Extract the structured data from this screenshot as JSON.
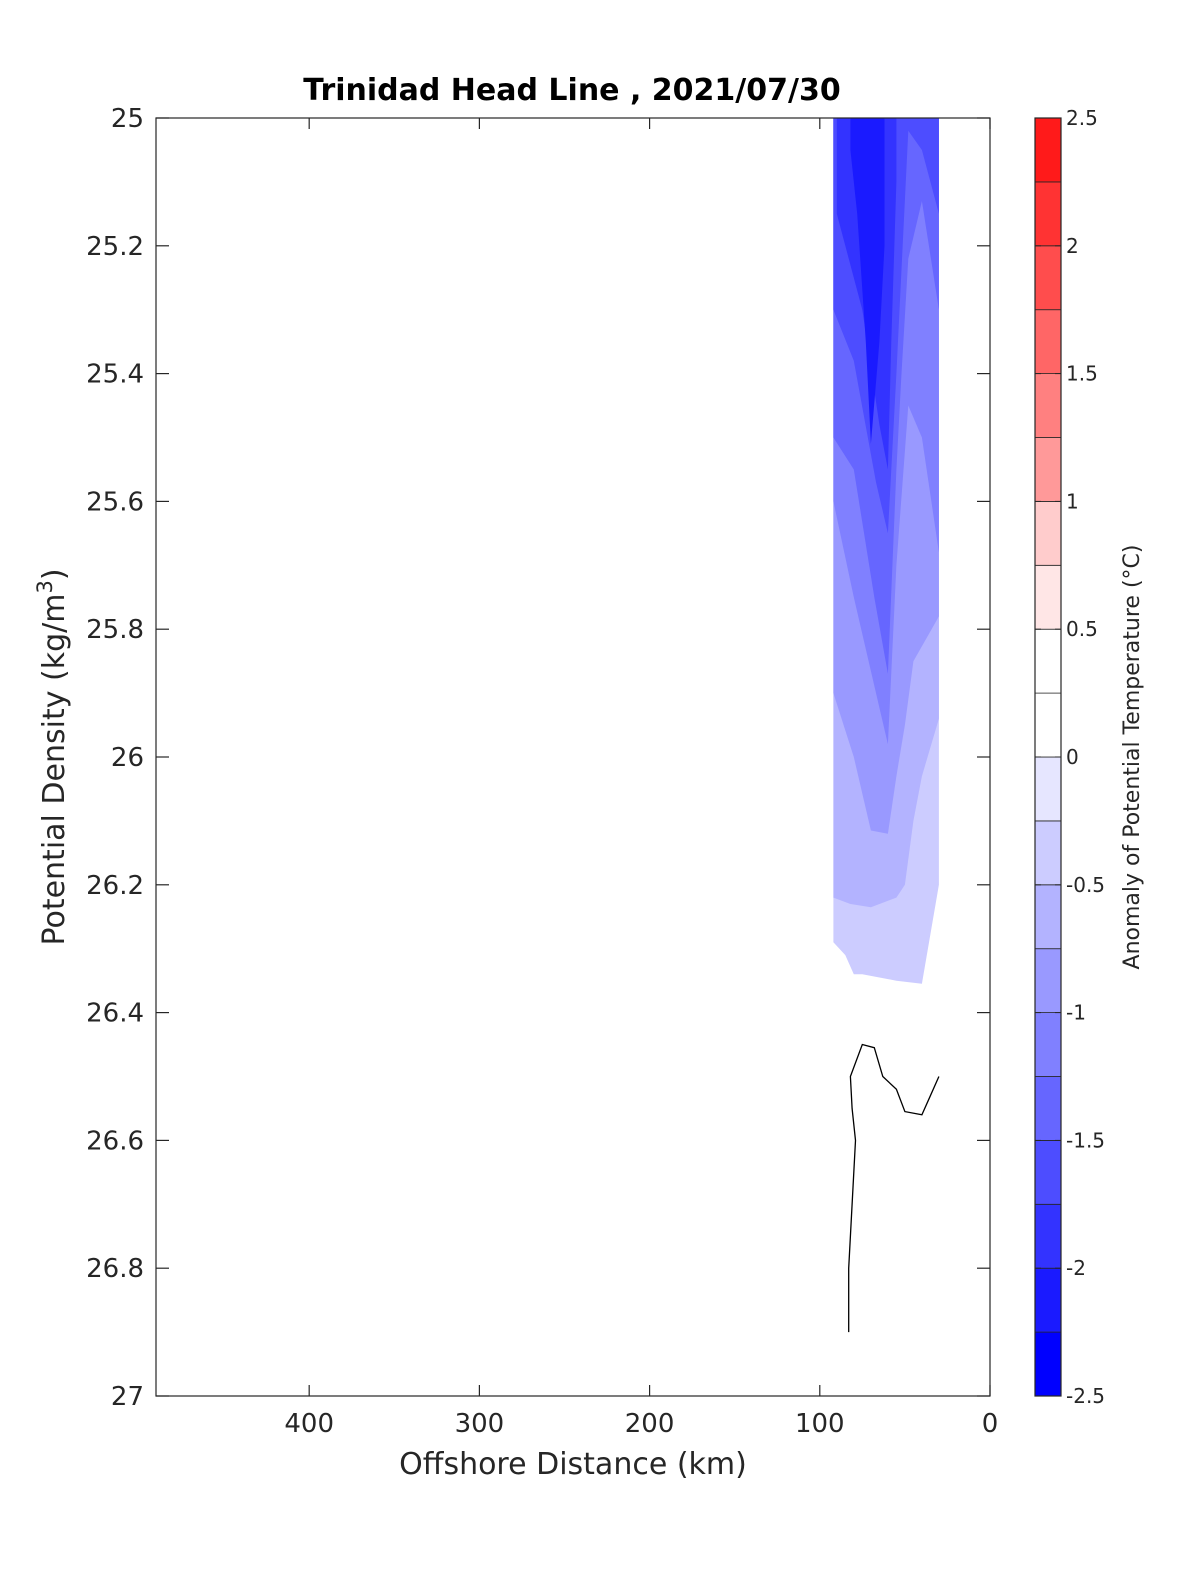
{
  "chart_data": {
    "type": "contour",
    "title": "Trinidad Head Line , 2021/07/30",
    "xlabel": "Offshore Distance (km)",
    "ylabel": "Potential Density (kg/m",
    "ylabel_superscript": "3",
    "ylabel_suffix": ")",
    "x_direction": "reversed",
    "y_direction": "reversed",
    "xlim": [
      490,
      0
    ],
    "ylim": [
      25,
      27
    ],
    "xticks": [
      400,
      300,
      200,
      100,
      0
    ],
    "yticks": [
      25,
      25.2,
      25.4,
      25.6,
      25.8,
      26,
      26.2,
      26.4,
      26.6,
      26.8,
      27
    ],
    "xtick_labels": [
      "400",
      "300",
      "200",
      "100",
      "0"
    ],
    "ytick_labels": [
      "25",
      "25.2",
      "25.4",
      "25.6",
      "25.8",
      "26",
      "26.2",
      "26.4",
      "26.6",
      "26.8",
      "27"
    ],
    "colorbar": {
      "label": "Anomaly of Potential Temperature (°C)",
      "limits": [
        -2.5,
        2.5
      ],
      "ticks": [
        -2.5,
        -2,
        -1.5,
        -1,
        -0.5,
        0,
        0.5,
        1,
        1.5,
        2,
        2.5
      ],
      "tick_labels": [
        "-2.5",
        "-2",
        "-1.5",
        "-1",
        "-0.5",
        "0",
        "0.5",
        "1",
        "1.5",
        "2",
        "2.5"
      ],
      "levels": [
        -2.5,
        -2.25,
        -2,
        -1.75,
        -1.5,
        -1.25,
        -1,
        -0.75,
        -0.5,
        -0.25,
        0,
        0.25,
        0.5,
        0.75,
        1,
        1.25,
        1.5,
        1.75,
        2,
        2.25,
        2.5
      ],
      "colors": [
        "#0000ff",
        "#1a1aff",
        "#3333ff",
        "#4d4dff",
        "#6666ff",
        "#8080ff",
        "#9999ff",
        "#b3b3ff",
        "#ccccff",
        "#e6e6ff",
        "#ffffff",
        "#ffffff",
        "#ffe6e6",
        "#ffcccc",
        "#ff9999",
        "#ff8080",
        "#ff6666",
        "#ff4d4d",
        "#ff3333",
        "#ff1a1a"
      ]
    },
    "filled_regions": [
      {
        "level": -0.5,
        "points": [
          [
            92,
            25
          ],
          [
            30,
            25
          ],
          [
            30,
            26.2
          ],
          [
            40,
            26.355
          ],
          [
            55,
            26.35
          ],
          [
            75,
            26.34
          ],
          [
            80,
            26.34
          ],
          [
            85,
            26.31
          ],
          [
            92,
            26.29
          ]
        ]
      },
      {
        "level": -0.75,
        "points": [
          [
            92,
            25
          ],
          [
            30,
            25
          ],
          [
            30,
            25.94
          ],
          [
            40,
            26.03
          ],
          [
            45,
            26.1
          ],
          [
            50,
            26.2
          ],
          [
            55,
            26.22
          ],
          [
            70,
            26.235
          ],
          [
            82,
            26.23
          ],
          [
            92,
            26.22
          ]
        ]
      },
      {
        "level": -1.0,
        "points": [
          [
            92,
            25
          ],
          [
            30,
            25
          ],
          [
            30,
            25.78
          ],
          [
            45,
            25.85
          ],
          [
            50,
            25.95
          ],
          [
            55,
            26.03
          ],
          [
            60,
            26.12
          ],
          [
            70,
            26.115
          ],
          [
            80,
            26.0
          ],
          [
            92,
            25.9
          ]
        ]
      },
      {
        "level": -1.25,
        "points": [
          [
            92,
            25
          ],
          [
            30,
            25
          ],
          [
            30,
            25.68
          ],
          [
            40,
            25.5
          ],
          [
            48,
            25.45
          ],
          [
            55,
            25.7
          ],
          [
            60,
            25.98
          ],
          [
            67,
            25.9
          ],
          [
            80,
            25.75
          ],
          [
            92,
            25.6
          ]
        ]
      },
      {
        "level": -1.5,
        "points": [
          [
            92,
            25
          ],
          [
            30,
            25
          ],
          [
            30,
            25.3
          ],
          [
            40,
            25.13
          ],
          [
            48,
            25.22
          ],
          [
            52,
            25.4
          ],
          [
            55,
            25.55
          ],
          [
            60,
            25.87
          ],
          [
            68,
            25.75
          ],
          [
            80,
            25.55
          ],
          [
            92,
            25.5
          ]
        ]
      },
      {
        "level": -1.75,
        "points": [
          [
            92,
            25
          ],
          [
            30,
            25
          ],
          [
            30,
            25.15
          ],
          [
            40,
            25.05
          ],
          [
            48,
            25.02
          ],
          [
            55,
            25.4
          ],
          [
            60,
            25.65
          ],
          [
            67,
            25.57
          ],
          [
            80,
            25.38
          ],
          [
            92,
            25.3
          ]
        ]
      },
      {
        "level": -2.0,
        "points": [
          [
            90,
            25
          ],
          [
            55,
            25
          ],
          [
            55,
            25.1
          ],
          [
            58,
            25.35
          ],
          [
            60,
            25.55
          ],
          [
            65,
            25.48
          ],
          [
            75,
            25.3
          ],
          [
            85,
            25.2
          ],
          [
            90,
            25.15
          ]
        ]
      },
      {
        "level": -2.25,
        "points": [
          [
            82,
            25
          ],
          [
            62,
            25
          ],
          [
            62,
            25.2
          ],
          [
            65,
            25.35
          ],
          [
            70,
            25.51
          ],
          [
            73,
            25.35
          ],
          [
            78,
            25.15
          ],
          [
            82,
            25.05
          ]
        ]
      },
      {
        "level": 0.25,
        "points": [
          [
            60,
            26.67
          ],
          [
            53,
            26.71
          ],
          [
            60,
            26.74
          ],
          [
            66,
            26.7
          ]
        ]
      },
      {
        "level": 0.25,
        "points": [
          [
            69,
            26.87
          ],
          [
            67,
            26.9
          ],
          [
            71,
            26.9
          ]
        ]
      }
    ],
    "zero_contour": [
      [
        83,
        26.9
      ],
      [
        83,
        26.8
      ],
      [
        79,
        26.6
      ],
      [
        81,
        26.55
      ],
      [
        82,
        26.5
      ],
      [
        75,
        26.45
      ],
      [
        68,
        26.455
      ],
      [
        63,
        26.5
      ],
      [
        55,
        26.52
      ],
      [
        50,
        26.555
      ],
      [
        40,
        26.56
      ],
      [
        35,
        26.53
      ],
      [
        30,
        26.5
      ]
    ]
  }
}
